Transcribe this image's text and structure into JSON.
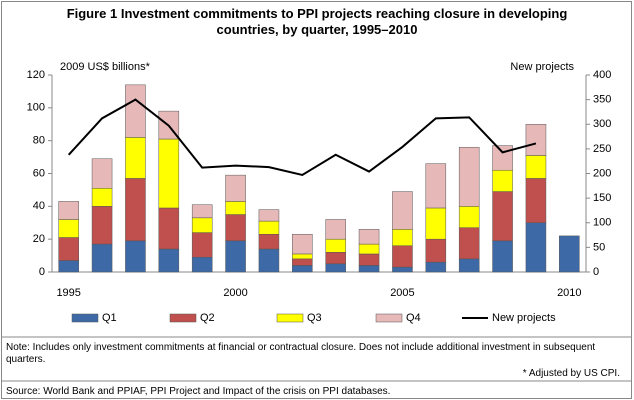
{
  "chart_data": {
    "type": "bar",
    "stacked": true,
    "title": "Figure 1 Investment commitments to PPI projects reaching closure in developing countries, by quarter, 1995–2010",
    "y_label": "2009 US$ billions*",
    "y2_label": "New projects",
    "categories": [
      "1995",
      null,
      null,
      null,
      null,
      "2000",
      null,
      null,
      null,
      null,
      "2005",
      null,
      null,
      null,
      null,
      "2010"
    ],
    "series": [
      {
        "name": "Q1",
        "color": "#3d6aa6",
        "values": [
          7,
          17,
          19,
          14,
          9,
          19,
          14,
          4,
          5,
          4,
          3,
          6,
          8,
          19,
          30,
          22
        ]
      },
      {
        "name": "Q2",
        "color": "#c0504d",
        "values": [
          14,
          23,
          38,
          25,
          15,
          16,
          9,
          4,
          7,
          7,
          13,
          14,
          19,
          30,
          27,
          null
        ]
      },
      {
        "name": "Q3",
        "color": "#ffff00",
        "values": [
          11,
          11,
          25,
          42,
          9,
          8,
          8,
          3,
          8,
          6,
          10,
          19,
          13,
          13,
          14,
          null
        ]
      },
      {
        "name": "Q4",
        "color": "#e6b9b8",
        "values": [
          11,
          18,
          32,
          17,
          8,
          16,
          7,
          12,
          12,
          9,
          23,
          27,
          36,
          15,
          19,
          null
        ]
      },
      {
        "name": "New projects",
        "type": "line",
        "axis": "y2",
        "color": "#000000",
        "values": [
          238,
          312,
          350,
          297,
          212,
          216,
          213,
          197,
          238,
          204,
          254,
          312,
          314,
          243,
          261,
          null
        ]
      }
    ],
    "ylim": [
      0,
      120
    ],
    "yticks": [
      0,
      20,
      40,
      60,
      80,
      100,
      120
    ],
    "y2lim": [
      0,
      400
    ],
    "y2ticks": [
      0,
      50,
      100,
      150,
      200,
      250,
      300,
      350,
      400
    ],
    "legend": "bottom",
    "grid": false,
    "note": "Note: Includes only investment commitments at financial or contractual closure. Does not include additional investment in subsequent quarters.",
    "footnote": "* Adjusted by US CPI.",
    "source": "Source: World Bank and PPIAF, PPI Project and Impact of the crisis on PPI databases."
  }
}
